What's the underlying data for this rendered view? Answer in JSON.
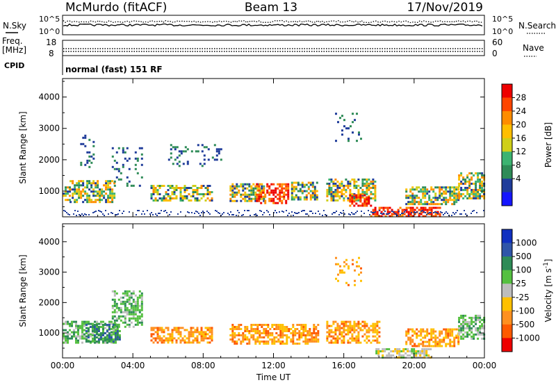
{
  "header": {
    "station": "McMurdo (fitACF)",
    "beam": "Beam 13",
    "date": "17/Nov/2019"
  },
  "summary_panel": {
    "nsky_label": "N.Sky",
    "nsearch_label": "N.Search",
    "count_tick_high": "10^5",
    "count_tick_low": "10^0",
    "freq_label_top": "Freq.",
    "freq_label_bottom": "[MHz]",
    "freq_tick_high": "18",
    "freq_tick_low": "8",
    "nave_label": "Nave",
    "nave_tick_high": "60",
    "nave_tick_low": "0",
    "cpid_label": "CPID",
    "cpid_value": "normal (fast) 151 RF"
  },
  "chart_data": [
    {
      "type": "heatmap",
      "name": "Power",
      "ylabel": "Slant Range [km]",
      "xlabel": "",
      "x_ticks": [
        "00:00",
        "04:00",
        "08:00",
        "12:00",
        "16:00",
        "20:00",
        "00:00"
      ],
      "y_ticks": [
        1000,
        2000,
        3000,
        4000
      ],
      "ylim": [
        180,
        4590
      ],
      "xlim_hours": [
        0,
        24
      ],
      "colorbar_label": "Power [dB]",
      "colorbar_ticks": [
        "28",
        "24",
        "20",
        "16",
        "12",
        "8",
        "4"
      ],
      "colorbar_colors": [
        "#ee0000",
        "#ff4500",
        "#ff8c00",
        "#ffbe00",
        "#cfcf18",
        "#3cb371",
        "#2e8b57",
        "#1f3c9a",
        "#1515ff"
      ],
      "echo_regions": [
        {
          "x": [
            0.0,
            0.4
          ],
          "range_km": [
            700,
            1150
          ],
          "level": "mid"
        },
        {
          "x": [
            0.4,
            3.0
          ],
          "range_km": [
            650,
            1350
          ],
          "level": "mid"
        },
        {
          "x": [
            1.0,
            1.8
          ],
          "range_km": [
            1800,
            2800
          ],
          "level": "low"
        },
        {
          "x": [
            2.8,
            4.5
          ],
          "range_km": [
            1200,
            2400
          ],
          "level": "low"
        },
        {
          "x": [
            5.0,
            8.5
          ],
          "range_km": [
            700,
            1200
          ],
          "level": "mid"
        },
        {
          "x": [
            6.0,
            9.0
          ],
          "range_km": [
            1800,
            2500
          ],
          "level": "low"
        },
        {
          "x": [
            9.5,
            11.5
          ],
          "range_km": [
            700,
            1250
          ],
          "level": "mid"
        },
        {
          "x": [
            11.0,
            12.8
          ],
          "range_km": [
            650,
            1250
          ],
          "level": "high"
        },
        {
          "x": [
            13.0,
            14.5
          ],
          "range_km": [
            750,
            1300
          ],
          "level": "mid"
        },
        {
          "x": [
            15.0,
            17.8
          ],
          "range_km": [
            700,
            1400
          ],
          "level": "mid"
        },
        {
          "x": [
            16.3,
            17.5
          ],
          "range_km": [
            550,
            900
          ],
          "level": "high"
        },
        {
          "x": [
            15.5,
            17.0
          ],
          "range_km": [
            2600,
            3500
          ],
          "level": "low"
        },
        {
          "x": [
            17.5,
            21.5
          ],
          "range_km": [
            180,
            500
          ],
          "level": "high"
        },
        {
          "x": [
            19.5,
            22.5
          ],
          "range_km": [
            600,
            1150
          ],
          "level": "mid"
        },
        {
          "x": [
            22.5,
            24.0
          ],
          "range_km": [
            800,
            1600
          ],
          "level": "mid"
        }
      ]
    },
    {
      "type": "heatmap",
      "name": "Velocity",
      "ylabel": "Slant Range [km]",
      "xlabel": "Time UT",
      "x_ticks": [
        "00:00",
        "04:00",
        "08:00",
        "12:00",
        "16:00",
        "20:00",
        "00:00"
      ],
      "y_ticks": [
        1000,
        2000,
        3000,
        4000
      ],
      "ylim": [
        180,
        4590
      ],
      "xlim_hours": [
        0,
        24
      ],
      "colorbar_label": "Velocity [m s^-1]",
      "colorbar_ticks": [
        "1000",
        "500",
        "100",
        "25",
        "-25",
        "-100",
        "-500",
        "-1000"
      ],
      "colorbar_colors": [
        "#1030c0",
        "#2f55a8",
        "#2e8b57",
        "#55c040",
        "#bdbdbd",
        "#ffc000",
        "#ff9020",
        "#ff5a00",
        "#ee0000"
      ],
      "echo_regions": [
        {
          "x": [
            0.0,
            3.0
          ],
          "range_km": [
            650,
            1400
          ],
          "level": "pos"
        },
        {
          "x": [
            1.3,
            3.2
          ],
          "range_km": [
            750,
            1300
          ],
          "level": "pos_strong"
        },
        {
          "x": [
            2.8,
            4.5
          ],
          "range_km": [
            1200,
            2400
          ],
          "level": "pos"
        },
        {
          "x": [
            5.0,
            8.5
          ],
          "range_km": [
            700,
            1200
          ],
          "level": "neg"
        },
        {
          "x": [
            9.5,
            14.5
          ],
          "range_km": [
            650,
            1300
          ],
          "level": "neg"
        },
        {
          "x": [
            15.0,
            18.0
          ],
          "range_km": [
            700,
            1400
          ],
          "level": "neg"
        },
        {
          "x": [
            15.5,
            17.0
          ],
          "range_km": [
            2600,
            3500
          ],
          "level": "neg"
        },
        {
          "x": [
            17.8,
            21.0
          ],
          "range_km": [
            180,
            500
          ],
          "level": "zero"
        },
        {
          "x": [
            19.5,
            22.5
          ],
          "range_km": [
            600,
            1150
          ],
          "level": "neg"
        },
        {
          "x": [
            22.5,
            24.0
          ],
          "range_km": [
            800,
            1600
          ],
          "level": "pos"
        }
      ]
    }
  ]
}
